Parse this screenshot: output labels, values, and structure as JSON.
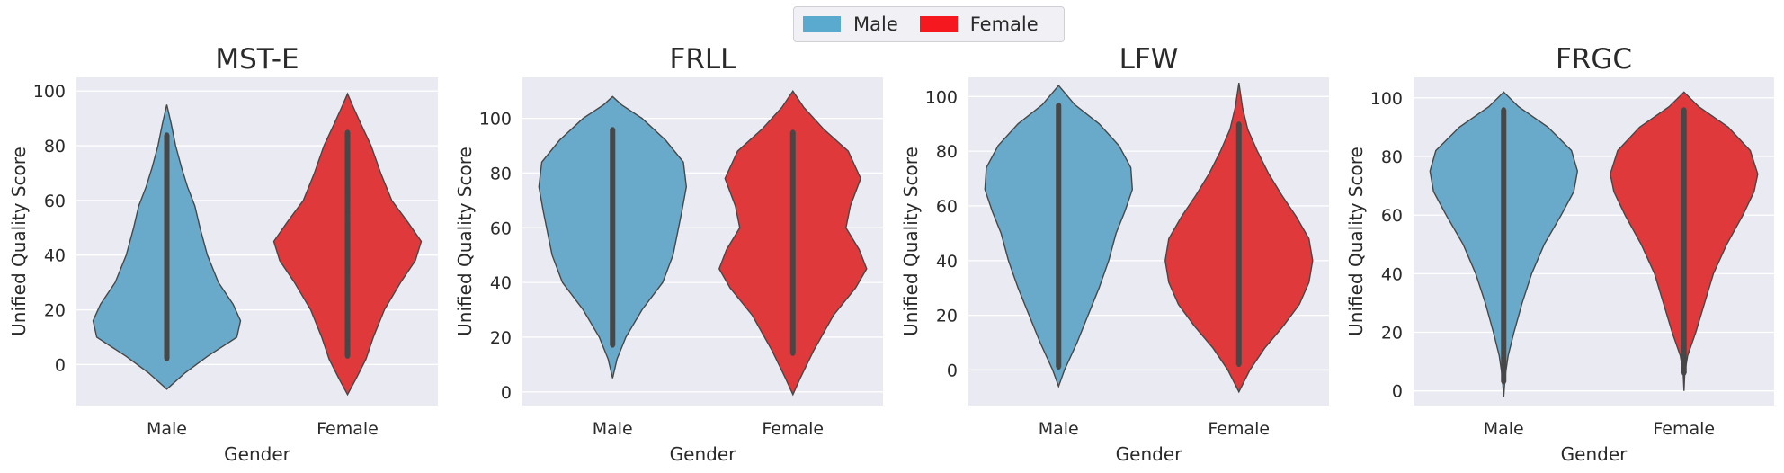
{
  "legend": {
    "items": [
      {
        "label": "Male",
        "color": "#5aa9cf"
      },
      {
        "label": "Female",
        "color": "#f5191f"
      }
    ]
  },
  "chart_data": [
    {
      "type": "violin",
      "title": "MST-E",
      "xlabel": "Gender",
      "ylabel": "Unified Quality Score",
      "categories": [
        "Male",
        "Female"
      ],
      "ylim": [
        -15,
        105
      ],
      "yticks": [
        0,
        20,
        40,
        60,
        80,
        100
      ],
      "series": [
        {
          "name": "Male",
          "color": "#69a9c9",
          "min": -9,
          "max": 95,
          "box": [
            2,
            84
          ],
          "points": [
            2,
            70,
            75,
            78,
            80,
            82,
            84
          ],
          "density": [
            [
              -9,
              0.0
            ],
            [
              -3,
              0.25
            ],
            [
              3,
              0.55
            ],
            [
              10,
              0.95
            ],
            [
              16,
              1.0
            ],
            [
              22,
              0.9
            ],
            [
              30,
              0.7
            ],
            [
              40,
              0.55
            ],
            [
              50,
              0.45
            ],
            [
              58,
              0.38
            ],
            [
              65,
              0.28
            ],
            [
              72,
              0.2
            ],
            [
              80,
              0.12
            ],
            [
              88,
              0.06
            ],
            [
              95,
              0.0
            ]
          ]
        },
        {
          "name": "Female",
          "color": "#e0393c",
          "min": -11,
          "max": 99,
          "box": [
            3,
            85
          ],
          "points": [
            3,
            6,
            8,
            10,
            15,
            20,
            25,
            30,
            35,
            40,
            45,
            50,
            55,
            60,
            65,
            70,
            80,
            85
          ],
          "density": [
            [
              -11,
              0.0
            ],
            [
              -5,
              0.12
            ],
            [
              2,
              0.25
            ],
            [
              10,
              0.35
            ],
            [
              20,
              0.5
            ],
            [
              30,
              0.72
            ],
            [
              38,
              0.92
            ],
            [
              45,
              1.0
            ],
            [
              52,
              0.82
            ],
            [
              60,
              0.6
            ],
            [
              70,
              0.45
            ],
            [
              80,
              0.32
            ],
            [
              88,
              0.18
            ],
            [
              94,
              0.08
            ],
            [
              99,
              0.0
            ]
          ]
        }
      ]
    },
    {
      "type": "violin",
      "title": "FRLL",
      "xlabel": "Gender",
      "ylabel": "Unified Quality Score",
      "categories": [
        "Male",
        "Female"
      ],
      "ylim": [
        -5,
        115
      ],
      "yticks": [
        0,
        20,
        40,
        60,
        80,
        100
      ],
      "series": [
        {
          "name": "Male",
          "color": "#69a9c9",
          "min": 5,
          "max": 108,
          "box": [
            17,
            96
          ],
          "points": [
            17,
            22,
            24,
            26,
            38,
            96
          ],
          "density": [
            [
              5,
              0.0
            ],
            [
              12,
              0.06
            ],
            [
              20,
              0.18
            ],
            [
              30,
              0.4
            ],
            [
              40,
              0.68
            ],
            [
              50,
              0.82
            ],
            [
              58,
              0.88
            ],
            [
              66,
              0.94
            ],
            [
              75,
              1.0
            ],
            [
              84,
              0.96
            ],
            [
              92,
              0.72
            ],
            [
              100,
              0.4
            ],
            [
              105,
              0.12
            ],
            [
              108,
              0.0
            ]
          ]
        },
        {
          "name": "Female",
          "color": "#e0393c",
          "min": -1,
          "max": 110,
          "box": [
            14,
            95
          ],
          "points": [
            14,
            18,
            22,
            28,
            60,
            66,
            76,
            95
          ],
          "density": [
            [
              -1,
              0.0
            ],
            [
              5,
              0.1
            ],
            [
              15,
              0.28
            ],
            [
              28,
              0.55
            ],
            [
              38,
              0.85
            ],
            [
              45,
              1.0
            ],
            [
              52,
              0.9
            ],
            [
              60,
              0.72
            ],
            [
              68,
              0.78
            ],
            [
              78,
              0.92
            ],
            [
              88,
              0.75
            ],
            [
              96,
              0.42
            ],
            [
              104,
              0.15
            ],
            [
              110,
              0.0
            ]
          ]
        }
      ]
    },
    {
      "type": "violin",
      "title": "LFW",
      "xlabel": "Gender",
      "ylabel": "Unified Quality Score",
      "categories": [
        "Male",
        "Female"
      ],
      "ylim": [
        -13,
        107
      ],
      "yticks": [
        0,
        20,
        40,
        60,
        80,
        100
      ],
      "series": [
        {
          "name": "Male",
          "color": "#69a9c9",
          "min": -6,
          "max": 104,
          "box": [
            1,
            97
          ],
          "points": [
            1,
            97
          ],
          "density": [
            [
              -6,
              0.0
            ],
            [
              0,
              0.08
            ],
            [
              10,
              0.25
            ],
            [
              20,
              0.4
            ],
            [
              30,
              0.55
            ],
            [
              40,
              0.68
            ],
            [
              50,
              0.78
            ],
            [
              58,
              0.9
            ],
            [
              66,
              1.0
            ],
            [
              74,
              0.98
            ],
            [
              82,
              0.82
            ],
            [
              90,
              0.55
            ],
            [
              97,
              0.22
            ],
            [
              104,
              0.0
            ]
          ]
        },
        {
          "name": "Female",
          "color": "#e0393c",
          "min": -8,
          "max": 105,
          "box": [
            2,
            90
          ],
          "points": [
            2,
            4,
            85,
            88,
            90
          ],
          "density": [
            [
              -8,
              0.0
            ],
            [
              0,
              0.15
            ],
            [
              8,
              0.35
            ],
            [
              16,
              0.6
            ],
            [
              24,
              0.82
            ],
            [
              32,
              0.95
            ],
            [
              40,
              1.0
            ],
            [
              48,
              0.95
            ],
            [
              56,
              0.78
            ],
            [
              64,
              0.58
            ],
            [
              72,
              0.4
            ],
            [
              80,
              0.25
            ],
            [
              88,
              0.12
            ],
            [
              96,
              0.05
            ],
            [
              105,
              0.0
            ]
          ]
        }
      ]
    },
    {
      "type": "violin",
      "title": "FRGC",
      "xlabel": "Gender",
      "ylabel": "Unified Quality Score",
      "categories": [
        "Male",
        "Female"
      ],
      "ylim": [
        -5,
        107
      ],
      "yticks": [
        0,
        20,
        40,
        60,
        80,
        100
      ],
      "series": [
        {
          "name": "Male",
          "color": "#69a9c9",
          "min": -2,
          "max": 102,
          "box": [
            3,
            96
          ],
          "points": [
            3,
            5,
            8,
            96
          ],
          "density": [
            [
              -2,
              0.0
            ],
            [
              5,
              0.02
            ],
            [
              12,
              0.06
            ],
            [
              20,
              0.14
            ],
            [
              30,
              0.25
            ],
            [
              40,
              0.38
            ],
            [
              50,
              0.55
            ],
            [
              60,
              0.78
            ],
            [
              68,
              0.95
            ],
            [
              75,
              1.0
            ],
            [
              82,
              0.92
            ],
            [
              90,
              0.6
            ],
            [
              97,
              0.2
            ],
            [
              102,
              0.0
            ]
          ]
        },
        {
          "name": "Female",
          "color": "#e0393c",
          "min": 0,
          "max": 102,
          "box": [
            6,
            96
          ],
          "points": [
            6,
            11,
            14,
            96
          ],
          "density": [
            [
              0,
              0.0
            ],
            [
              6,
              0.01
            ],
            [
              12,
              0.05
            ],
            [
              20,
              0.16
            ],
            [
              30,
              0.28
            ],
            [
              40,
              0.4
            ],
            [
              50,
              0.58
            ],
            [
              60,
              0.8
            ],
            [
              68,
              0.95
            ],
            [
              74,
              1.0
            ],
            [
              82,
              0.9
            ],
            [
              90,
              0.6
            ],
            [
              97,
              0.2
            ],
            [
              102,
              0.0
            ]
          ]
        }
      ]
    }
  ]
}
